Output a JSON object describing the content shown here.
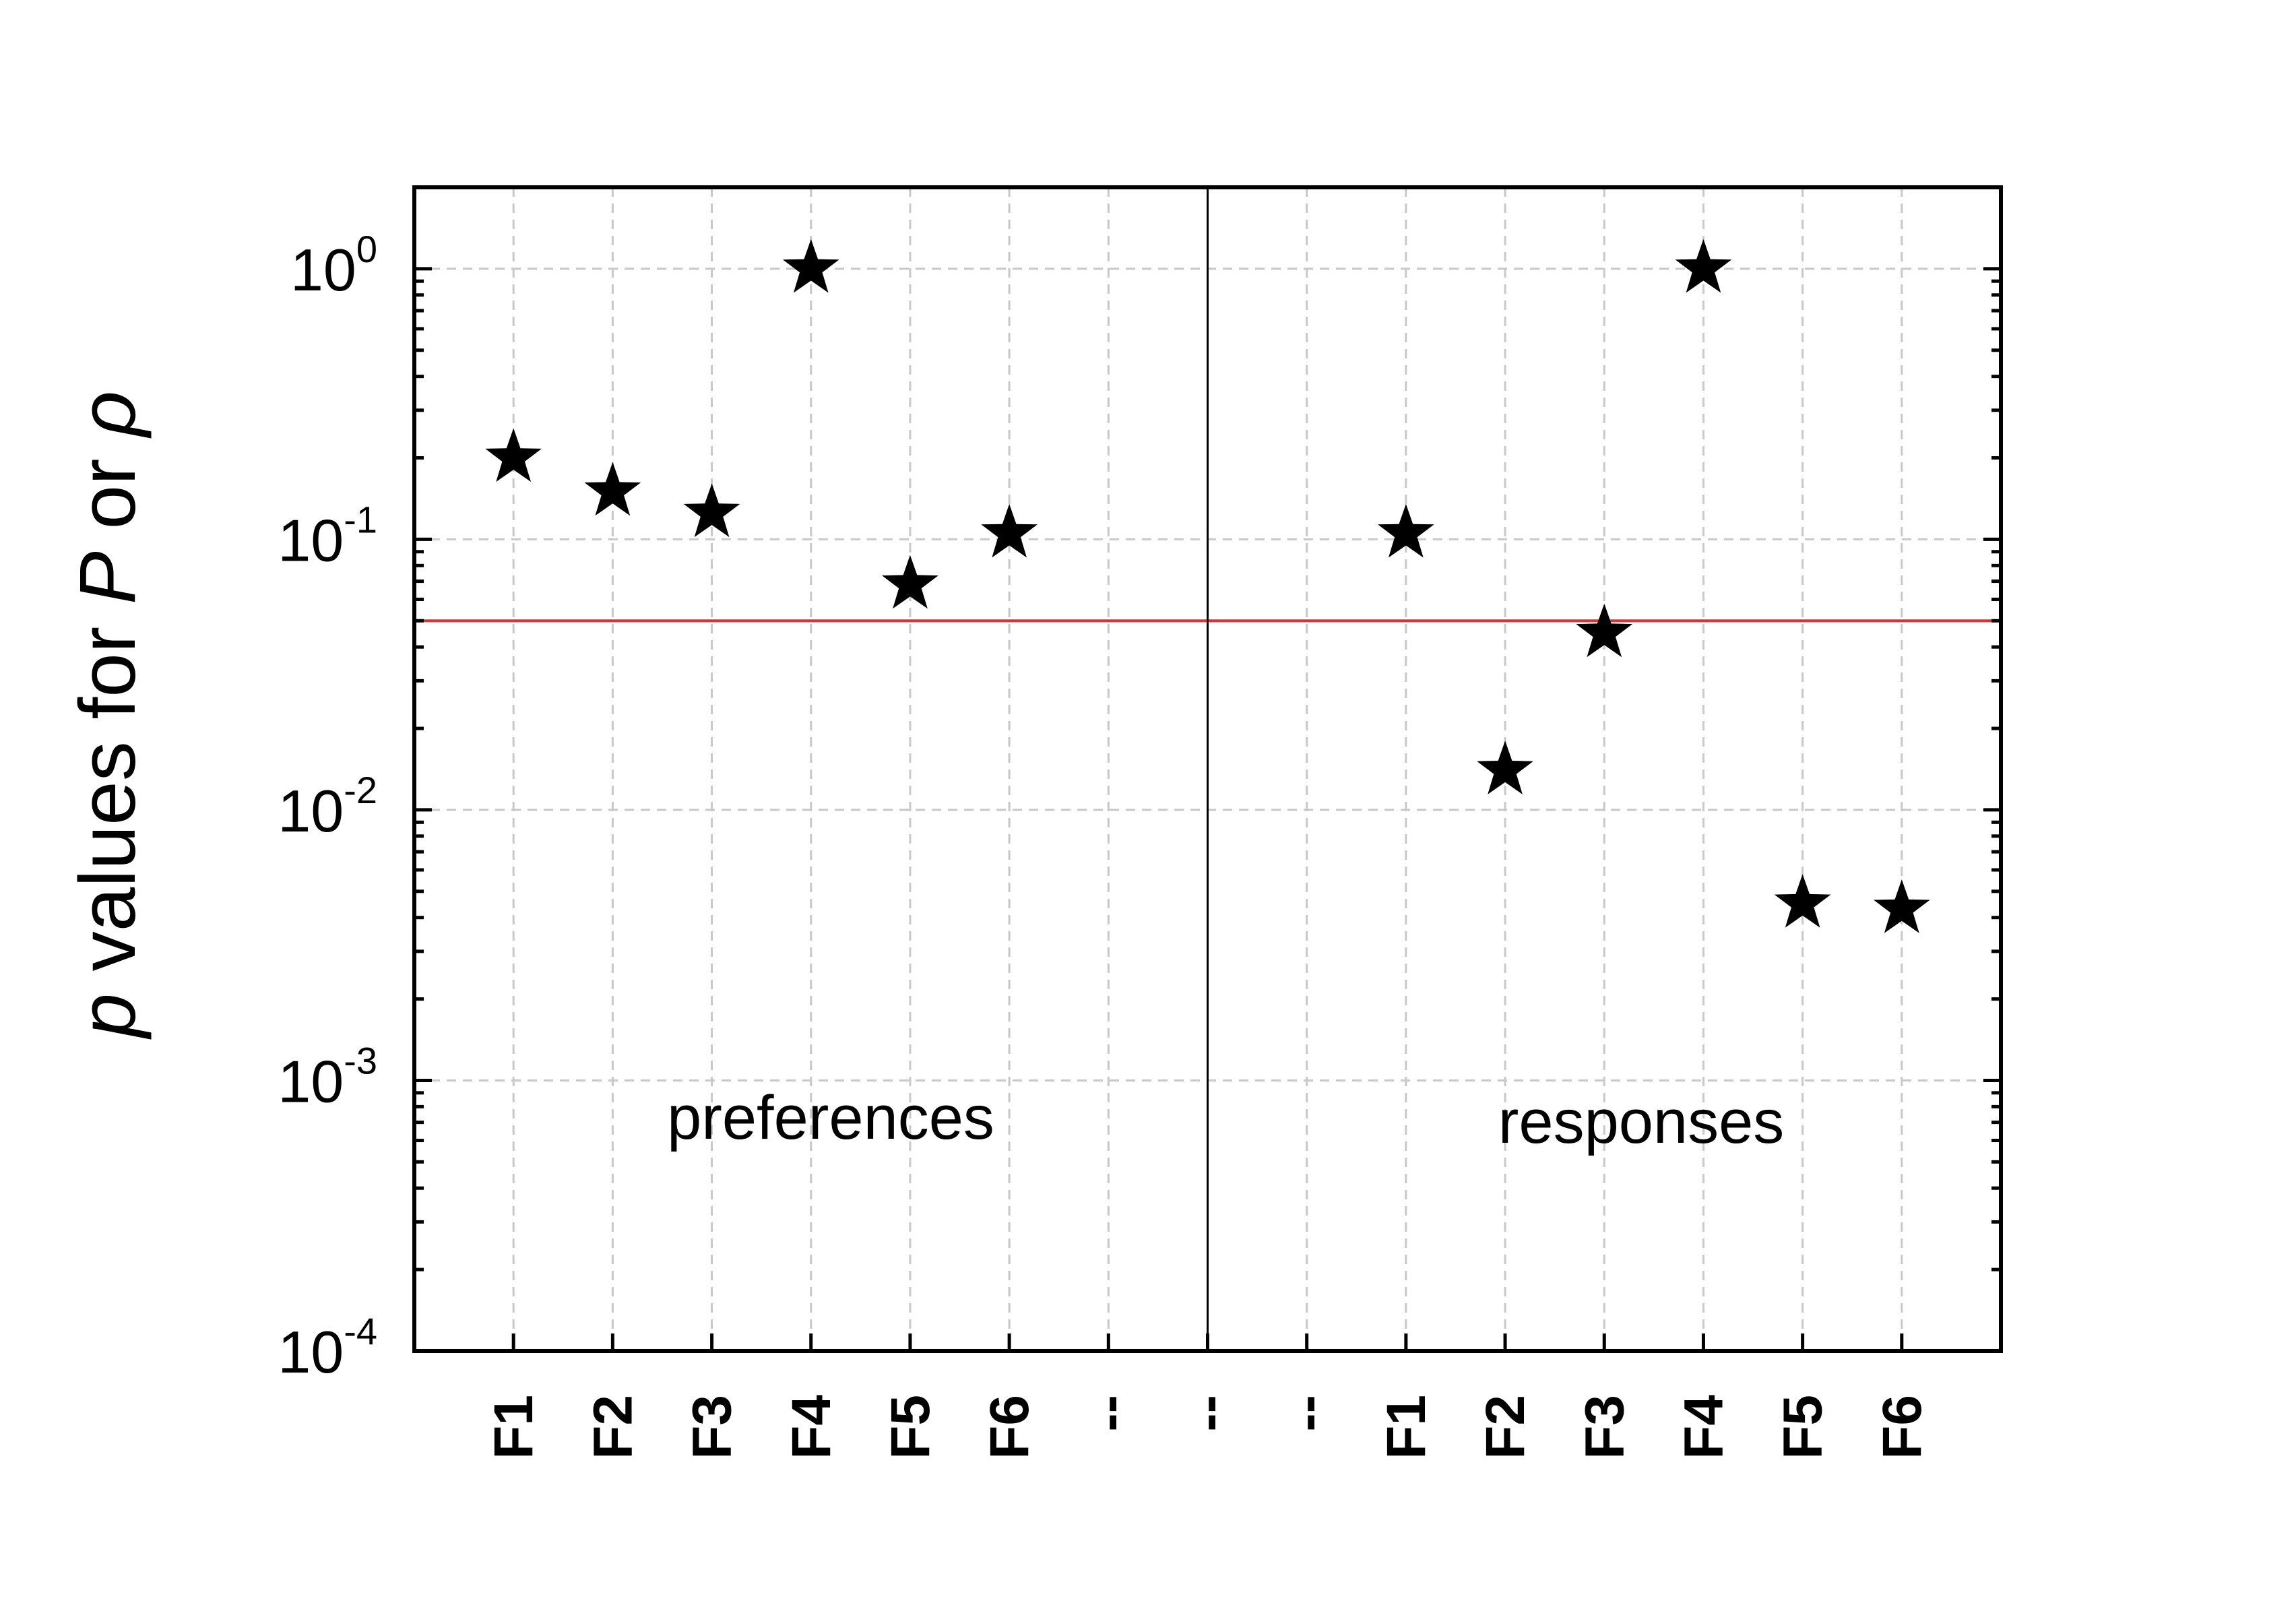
{
  "chart_data": {
    "type": "scatter",
    "ylabel": {
      "parts": [
        {
          "text": "p",
          "italic": true
        },
        {
          "text": " values for  ",
          "italic": false
        },
        {
          "text": "P",
          "italic": true
        },
        {
          "text": "  or  ",
          "italic": false
        },
        {
          "text": "ρ",
          "italic": true
        }
      ]
    },
    "yscale": "log",
    "ylim": [
      0.0001,
      2.0
    ],
    "yticks": [
      {
        "base": "10",
        "exp": "0",
        "value": 1
      },
      {
        "base": "10",
        "exp": "-1",
        "value": 0.1
      },
      {
        "base": "10",
        "exp": "-2",
        "value": 0.01
      },
      {
        "base": "10",
        "exp": "-3",
        "value": 0.001
      },
      {
        "base": "10",
        "exp": "-4",
        "value": 0.0001
      }
    ],
    "categories": [
      "F1",
      "F2",
      "F3",
      "F4",
      "F5",
      "F6",
      "--",
      "--",
      "--",
      "F1",
      "F2",
      "F3",
      "F4",
      "F5",
      "F6"
    ],
    "divider_at": 7,
    "annotations": [
      "preferences",
      "responses"
    ],
    "series": [
      {
        "marker": "star",
        "color": "#000000",
        "points": [
          {
            "x": 0,
            "y": 0.2
          },
          {
            "x": 1,
            "y": 0.15
          },
          {
            "x": 2,
            "y": 0.125
          },
          {
            "x": 3,
            "y": 1.0
          },
          {
            "x": 4,
            "y": 0.068
          },
          {
            "x": 5,
            "y": 0.105
          },
          {
            "x": 9,
            "y": 0.105
          },
          {
            "x": 10,
            "y": 0.014
          },
          {
            "x": 11,
            "y": 0.045
          },
          {
            "x": 12,
            "y": 1.0
          },
          {
            "x": 13,
            "y": 0.0045
          },
          {
            "x": 14,
            "y": 0.0043
          }
        ]
      }
    ],
    "threshold": {
      "y": 0.05,
      "color": "#e03030"
    },
    "grid": true
  }
}
